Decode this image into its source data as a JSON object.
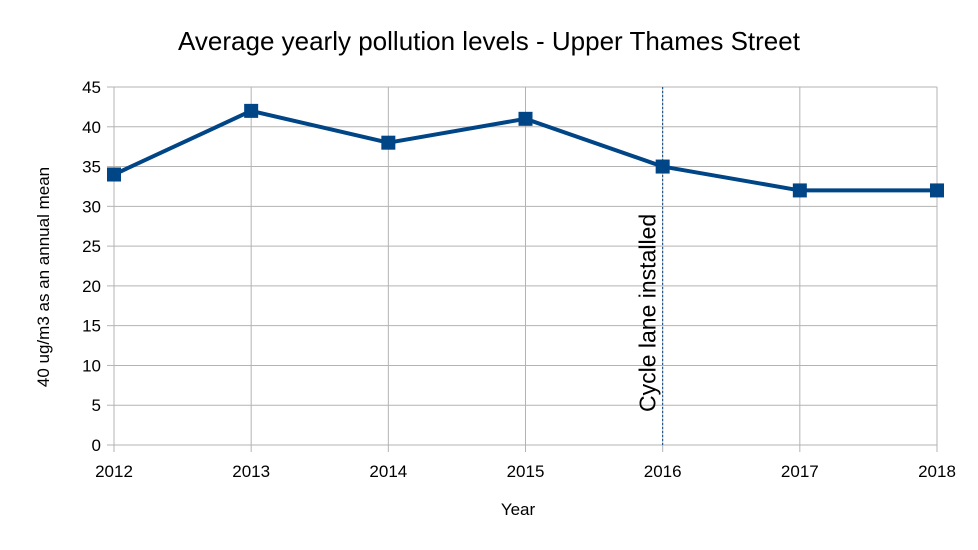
{
  "chart_data": {
    "type": "line",
    "title": "Average yearly pollution levels - Upper Thames Street",
    "xlabel": "Year",
    "ylabel": "40 ug/m3 as an annual mean",
    "x": [
      "2012",
      "2013",
      "2014",
      "2015",
      "2016",
      "2017",
      "2018"
    ],
    "series": [
      {
        "values": [
          34,
          42,
          38,
          41,
          35,
          32,
          32
        ]
      }
    ],
    "ylim": [
      0,
      45
    ],
    "yticks": [
      0,
      5,
      10,
      15,
      20,
      25,
      30,
      35,
      40,
      45
    ],
    "grid": true,
    "legend": "none",
    "annotations": [
      {
        "text": "Cycle lane installed",
        "x": "2016",
        "style": "dashed vertical line"
      }
    ],
    "colors": {
      "series": "#004586",
      "grid": "#b3b3b3",
      "annotation": "#004586"
    }
  }
}
